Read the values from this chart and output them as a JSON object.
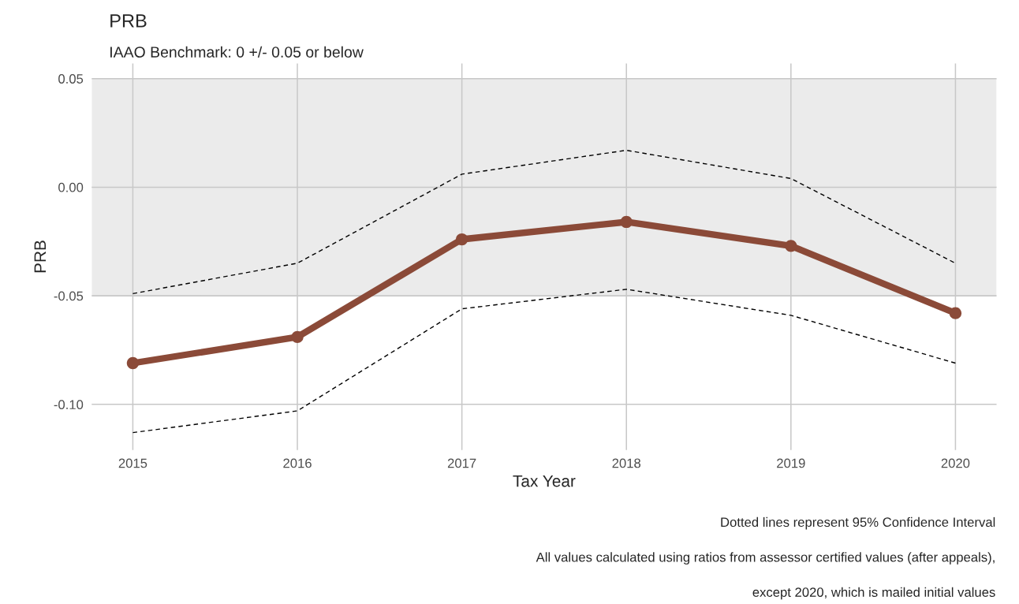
{
  "chart_data": {
    "type": "line",
    "title": "PRB",
    "subtitle": "IAAO Benchmark: 0 +/- 0.05 or below",
    "xlabel": "Tax Year",
    "ylabel": "PRB",
    "x": [
      2015,
      2016,
      2017,
      2018,
      2019,
      2020
    ],
    "series": [
      {
        "color": "#000000",
        "line_style": "dashed",
        "marker": "none",
        "values": [
          -0.049,
          -0.035,
          0.006,
          0.017,
          0.004,
          -0.035
        ]
      },
      {
        "color": "#000000",
        "line_style": "dashed",
        "marker": "none",
        "values": [
          -0.113,
          -0.103,
          -0.056,
          -0.047,
          -0.059,
          -0.081
        ]
      },
      {
        "color": "#8b4a38",
        "line_style": "solid",
        "marker": "circle",
        "values": [
          -0.081,
          -0.069,
          -0.024,
          -0.016,
          -0.027,
          -0.058
        ]
      }
    ],
    "bands": [
      {
        "axis": "y",
        "from": -0.05,
        "to": 0.05,
        "color": "#ebebeb"
      }
    ],
    "xlim": [
      2014.75,
      2020.25
    ],
    "xticks": [
      2015,
      2016,
      2017,
      2018,
      2019,
      2020
    ],
    "ylim": [
      -0.121,
      0.057
    ],
    "yticks": [
      {
        "value": 0.05,
        "label": "0.05"
      },
      {
        "value": 0.0,
        "label": "0.00"
      },
      {
        "value": -0.05,
        "label": "-0.05"
      },
      {
        "value": -0.1,
        "label": "-0.10"
      }
    ],
    "grid": true,
    "annotations": [
      "Dotted lines represent 95% Confidence Interval",
      "All values calculated using ratios from assessor certified values (after appeals),",
      "except 2020, which is mailed initial values"
    ]
  }
}
